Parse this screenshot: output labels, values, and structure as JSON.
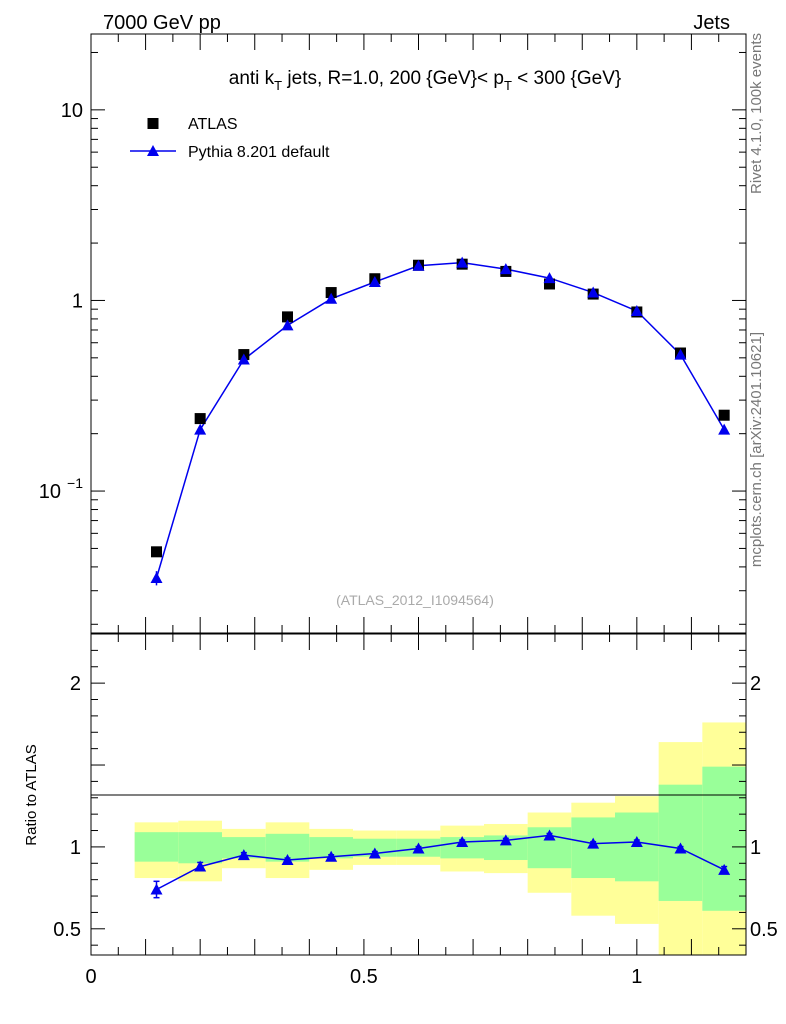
{
  "header": {
    "left": "7000 GeV pp",
    "right": "Jets"
  },
  "side_labels": {
    "rivet": "Rivet 4.1.0,  100k events",
    "mcplots": "mcplots.cern.ch [arXiv:2401.10621]"
  },
  "colors": {
    "mc": "#0000ee",
    "data": "#000000",
    "band_outer": "#ffff99",
    "band_inner": "#99ff99"
  },
  "chart_data": [
    {
      "type": "scatter",
      "title": {
        "prefix": "anti k",
        "sub1": "T",
        "mid": " jets, R=1.0,  200 {GeV}< p",
        "sub2": "T",
        "suffix": " < 300 {GeV}"
      },
      "watermark": "(ATLAS_2012_I1094564)",
      "yscale": "log",
      "xlim": [
        0,
        1.2
      ],
      "ylim": [
        0.018,
        25
      ],
      "yticks": [
        {
          "value": 10,
          "label": "10"
        },
        {
          "value": 1,
          "label": "1"
        },
        {
          "value": 0.1,
          "label": "10",
          "exp": "−1"
        }
      ],
      "legend_position": "top-left",
      "series": [
        {
          "name": "ATLAS",
          "marker": "square",
          "x": [
            0.12,
            0.2,
            0.28,
            0.36,
            0.44,
            0.52,
            0.6,
            0.68,
            0.76,
            0.84,
            0.92,
            1.0,
            1.08,
            1.16
          ],
          "y": [
            0.048,
            0.24,
            0.52,
            0.82,
            1.1,
            1.3,
            1.53,
            1.55,
            1.42,
            1.22,
            1.08,
            0.87,
            0.53,
            0.25
          ]
        },
        {
          "name": "Pythia 8.201 default",
          "marker": "triangle",
          "x": [
            0.12,
            0.2,
            0.28,
            0.36,
            0.44,
            0.52,
            0.6,
            0.68,
            0.76,
            0.84,
            0.92,
            1.0,
            1.08,
            1.16
          ],
          "y": [
            0.035,
            0.21,
            0.49,
            0.74,
            1.02,
            1.25,
            1.52,
            1.58,
            1.46,
            1.31,
            1.1,
            0.88,
            0.52,
            0.21
          ],
          "yerr": [
            0.003,
            0.006,
            0.008,
            0.01,
            0.012,
            0.013,
            0.015,
            0.015,
            0.014,
            0.013,
            0.012,
            0.01,
            0.008,
            0.005
          ]
        }
      ]
    },
    {
      "type": "scatter",
      "ylabel": "Ratio to ATLAS",
      "xlim": [
        0,
        1.2
      ],
      "ylim": [
        0.34,
        2.3
      ],
      "yticks": [
        {
          "value": 2,
          "label": "2"
        },
        {
          "value": 1,
          "label": "1"
        },
        {
          "value": 0.5,
          "label": "0.5"
        }
      ],
      "xticks": [
        {
          "value": 0,
          "label": "0"
        },
        {
          "value": 0.5,
          "label": "0.5"
        },
        {
          "value": 1,
          "label": "1"
        }
      ],
      "bins": [
        {
          "xlo": 0.08,
          "xhi": 0.16,
          "inner": [
            0.91,
            1.09
          ],
          "outer": [
            0.81,
            1.15
          ]
        },
        {
          "xlo": 0.16,
          "xhi": 0.24,
          "inner": [
            0.9,
            1.09
          ],
          "outer": [
            0.79,
            1.16
          ]
        },
        {
          "xlo": 0.24,
          "xhi": 0.32,
          "inner": [
            0.93,
            1.06
          ],
          "outer": [
            0.87,
            1.11
          ]
        },
        {
          "xlo": 0.32,
          "xhi": 0.4,
          "inner": [
            0.91,
            1.08
          ],
          "outer": [
            0.81,
            1.15
          ]
        },
        {
          "xlo": 0.4,
          "xhi": 0.48,
          "inner": [
            0.93,
            1.06
          ],
          "outer": [
            0.86,
            1.11
          ]
        },
        {
          "xlo": 0.48,
          "xhi": 0.56,
          "inner": [
            0.94,
            1.05
          ],
          "outer": [
            0.89,
            1.1
          ]
        },
        {
          "xlo": 0.56,
          "xhi": 0.64,
          "inner": [
            0.94,
            1.05
          ],
          "outer": [
            0.89,
            1.1
          ]
        },
        {
          "xlo": 0.64,
          "xhi": 0.72,
          "inner": [
            0.93,
            1.06
          ],
          "outer": [
            0.85,
            1.13
          ]
        },
        {
          "xlo": 0.72,
          "xhi": 0.8,
          "inner": [
            0.92,
            1.07
          ],
          "outer": [
            0.84,
            1.14
          ]
        },
        {
          "xlo": 0.8,
          "xhi": 0.88,
          "inner": [
            0.87,
            1.12
          ],
          "outer": [
            0.72,
            1.21
          ]
        },
        {
          "xlo": 0.88,
          "xhi": 0.96,
          "inner": [
            0.81,
            1.18
          ],
          "outer": [
            0.58,
            1.27
          ]
        },
        {
          "xlo": 0.96,
          "xhi": 1.04,
          "inner": [
            0.79,
            1.21
          ],
          "outer": [
            0.53,
            1.31
          ]
        },
        {
          "xlo": 1.04,
          "xhi": 1.12,
          "inner": [
            0.67,
            1.38
          ],
          "outer": [
            0.34,
            1.64
          ]
        },
        {
          "xlo": 1.12,
          "xhi": 1.2,
          "inner": [
            0.61,
            1.49
          ],
          "outer": [
            0.34,
            1.76
          ]
        }
      ],
      "ratio": {
        "x": [
          0.12,
          0.2,
          0.28,
          0.36,
          0.44,
          0.52,
          0.6,
          0.68,
          0.76,
          0.84,
          0.92,
          1.0,
          1.08,
          1.16
        ],
        "y": [
          0.74,
          0.88,
          0.95,
          0.92,
          0.94,
          0.96,
          0.99,
          1.03,
          1.04,
          1.07,
          1.02,
          1.03,
          0.99,
          0.86
        ],
        "yerr": [
          0.05,
          0.025,
          0.015,
          0.012,
          0.012,
          0.012,
          0.012,
          0.012,
          0.012,
          0.012,
          0.012,
          0.012,
          0.012,
          0.02
        ]
      }
    }
  ]
}
